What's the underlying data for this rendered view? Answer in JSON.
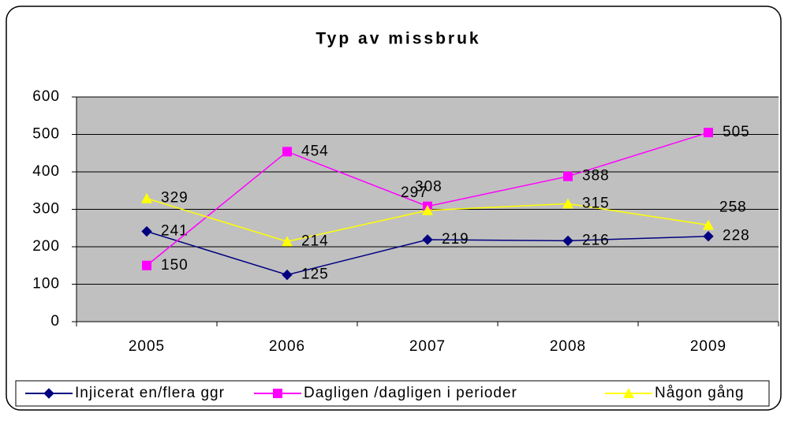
{
  "chart_data": {
    "type": "line",
    "title": "Typ av missbruk",
    "categories": [
      "2005",
      "2006",
      "2007",
      "2008",
      "2009"
    ],
    "series": [
      {
        "name": "Injicerat en/flera ggr",
        "color": "#000080",
        "marker": "diamond",
        "values": [
          241,
          125,
          219,
          216,
          228
        ]
      },
      {
        "name": "Dagligen /dagligen i perioder",
        "color": "#ff00ff",
        "marker": "square",
        "values": [
          150,
          454,
          308,
          388,
          505
        ]
      },
      {
        "name": "Någon gång",
        "color": "#ffff00",
        "marker": "triangle",
        "values": [
          329,
          214,
          297,
          315,
          258
        ]
      }
    ],
    "ylim": [
      0,
      600
    ],
    "yticks": [
      0,
      100,
      200,
      300,
      400,
      500,
      600
    ],
    "grid": true,
    "legend": "bottom"
  }
}
